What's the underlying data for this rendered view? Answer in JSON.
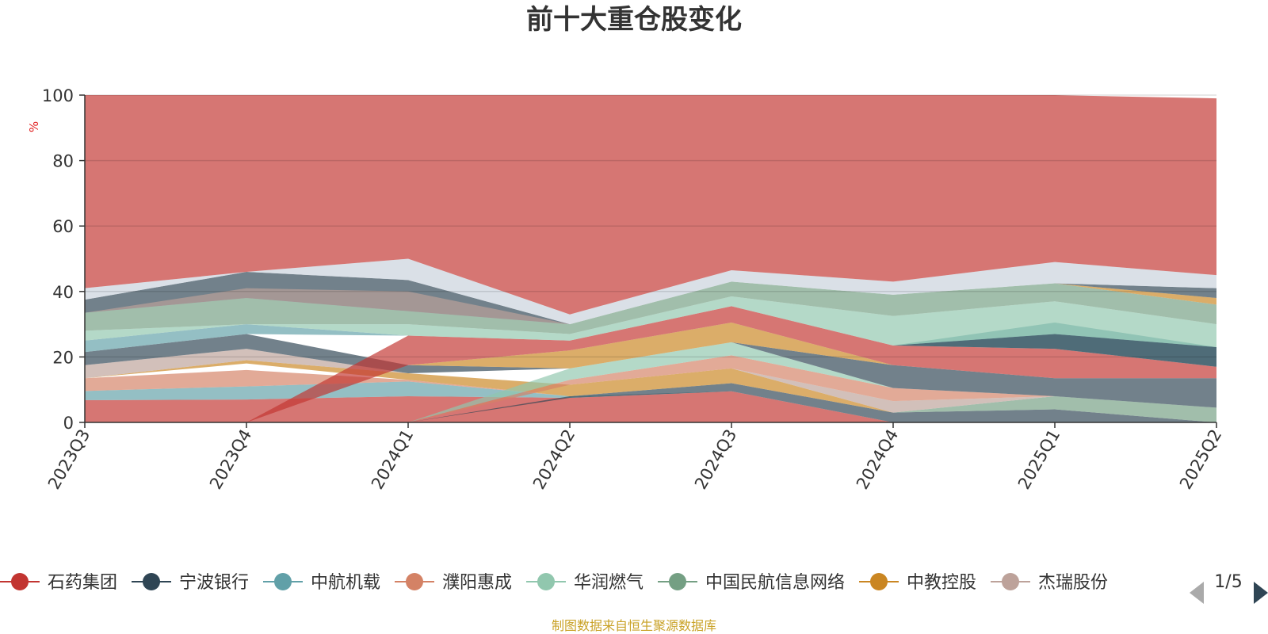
{
  "chart_data": {
    "type": "area",
    "title": "前十大重仓股变化",
    "ylabel": "%",
    "ylim": [
      0,
      100
    ],
    "yticks": [
      0,
      20,
      40,
      60,
      80,
      100
    ],
    "categories": [
      "2023Q3",
      "2023Q4",
      "2024Q1",
      "2024Q2",
      "2024Q3",
      "2024Q4",
      "2025Q1",
      "2025Q2"
    ],
    "bands": [
      {
        "color": "#c23531",
        "values": [
          [
            0,
            6.8
          ],
          [
            0,
            7
          ],
          [
            0,
            8
          ],
          [
            0,
            7.5
          ],
          [
            0,
            9.5
          ],
          [
            0,
            0
          ],
          [
            0,
            0
          ],
          [
            0,
            0
          ]
        ]
      },
      {
        "color": "#61a0a8",
        "values": [
          [
            6.8,
            9.6
          ],
          [
            7,
            11
          ],
          [
            8,
            12.5
          ],
          [
            7.5,
            8
          ],
          [
            9.5,
            9.5
          ],
          [
            0,
            0
          ],
          [
            0,
            0
          ],
          [
            0,
            0
          ]
        ]
      },
      {
        "color": "#d48265",
        "values": [
          [
            9.6,
            13.5
          ],
          [
            11,
            16
          ],
          [
            12.5,
            13
          ],
          [
            8,
            8
          ],
          [
            9.5,
            9.5
          ],
          [
            0,
            0
          ],
          [
            0,
            0
          ],
          [
            0,
            0
          ]
        ]
      },
      {
        "color": "#2f4554",
        "values": [
          [
            0,
            0
          ],
          [
            0,
            0
          ],
          [
            0,
            0
          ],
          [
            7.5,
            8
          ],
          [
            9.5,
            12
          ],
          [
            0,
            3
          ],
          [
            0,
            4
          ],
          [
            0,
            0
          ]
        ]
      },
      {
        "color": "#749f83",
        "values": [
          [
            0,
            0
          ],
          [
            0,
            0
          ],
          [
            0,
            0
          ],
          [
            0,
            0
          ],
          [
            0,
            0
          ],
          [
            3,
            3
          ],
          [
            4,
            8
          ],
          [
            0,
            4.5
          ]
        ]
      },
      {
        "color": "#ca8622",
        "values": [
          [
            13.5,
            13.5
          ],
          [
            18,
            19
          ],
          [
            13,
            15
          ],
          [
            8,
            11.5
          ],
          [
            12,
            16.5
          ],
          [
            3,
            3
          ],
          [
            8,
            8
          ],
          [
            4.5,
            4.5
          ]
        ]
      },
      {
        "color": "#bda29a",
        "values": [
          [
            13.5,
            17.5
          ],
          [
            19,
            22.5
          ],
          [
            15,
            15
          ],
          [
            11.5,
            11.5
          ],
          [
            16.5,
            16.5
          ],
          [
            3,
            6.5
          ],
          [
            8,
            8
          ],
          [
            4.5,
            4.5
          ]
        ]
      },
      {
        "color": "#d48265",
        "values": [
          [
            0,
            0
          ],
          [
            0,
            0
          ],
          [
            0,
            0
          ],
          [
            11.5,
            13
          ],
          [
            16.5,
            20.5
          ],
          [
            6.5,
            10.5
          ],
          [
            8,
            8
          ],
          [
            4.5,
            4.5
          ]
        ]
      },
      {
        "color": "#91c7ae",
        "values": [
          [
            0,
            0
          ],
          [
            0,
            0
          ],
          [
            0,
            0
          ],
          [
            13,
            16.5
          ],
          [
            20.5,
            24.5
          ],
          [
            10.5,
            10.5
          ],
          [
            8,
            8
          ],
          [
            4.5,
            4.5
          ]
        ]
      },
      {
        "color": "#2f4554",
        "values": [
          [
            17.5,
            21.5
          ],
          [
            22.5,
            27
          ],
          [
            15,
            17.5
          ],
          [
            16.5,
            16.5
          ],
          [
            24.5,
            24.5
          ],
          [
            10.5,
            17.5
          ],
          [
            8,
            13.5
          ],
          [
            4.5,
            13.5
          ]
        ]
      },
      {
        "color": "#ca8622",
        "values": [
          [
            0,
            0
          ],
          [
            0,
            0
          ],
          [
            17.5,
            17.5
          ],
          [
            16.5,
            22
          ],
          [
            24.5,
            30.5
          ],
          [
            17.5,
            17.5
          ],
          [
            13.5,
            13.5
          ],
          [
            13.5,
            13.5
          ]
        ]
      },
      {
        "color": "#c23531",
        "values": [
          [
            0,
            0
          ],
          [
            0,
            0
          ],
          [
            17.5,
            26.5
          ],
          [
            22,
            25
          ],
          [
            30.5,
            35.5
          ],
          [
            17.5,
            23.5
          ],
          [
            13.5,
            22.5
          ],
          [
            13.5,
            17
          ]
        ]
      },
      {
        "color": "#61a0a8",
        "values": [
          [
            21.5,
            25
          ],
          [
            27,
            30
          ],
          [
            26.5,
            26.5
          ],
          [
            25,
            25
          ],
          [
            35.5,
            35.5
          ],
          [
            23.5,
            23.5
          ],
          [
            22.5,
            30.5
          ],
          [
            17,
            23
          ]
        ]
      },
      {
        "color": "#2f4554",
        "values": [
          [
            0,
            0
          ],
          [
            0,
            0
          ],
          [
            0,
            0
          ],
          [
            0,
            0
          ],
          [
            0,
            0
          ],
          [
            23.5,
            23.5
          ],
          [
            22.5,
            27
          ],
          [
            17,
            23
          ]
        ]
      },
      {
        "color": "#91c7ae",
        "values": [
          [
            25,
            28
          ],
          [
            30,
            30
          ],
          [
            26.5,
            30
          ],
          [
            25,
            27
          ],
          [
            35.5,
            38.5
          ],
          [
            23.5,
            32.5
          ],
          [
            27,
            37
          ],
          [
            23,
            30
          ]
        ]
      },
      {
        "color": "#749f83",
        "values": [
          [
            28,
            33.5
          ],
          [
            30,
            38
          ],
          [
            30,
            34
          ],
          [
            27,
            30
          ],
          [
            38.5,
            43
          ],
          [
            32.5,
            39
          ],
          [
            37,
            42.5
          ],
          [
            30,
            36
          ]
        ]
      },
      {
        "color": "#ca8622",
        "values": [
          [
            0,
            0
          ],
          [
            0,
            0
          ],
          [
            0,
            0
          ],
          [
            0,
            0
          ],
          [
            0,
            0
          ],
          [
            0,
            0
          ],
          [
            42.5,
            42.5
          ],
          [
            36,
            38
          ]
        ]
      },
      {
        "color": "#2f4554",
        "values": [
          [
            33.5,
            37.5
          ],
          [
            38,
            46
          ],
          [
            34,
            43.5
          ],
          [
            30,
            30
          ],
          [
            43,
            43
          ],
          [
            39,
            39
          ],
          [
            42.5,
            42.5
          ],
          [
            38,
            41
          ]
        ]
      },
      {
        "color": "#bda29a",
        "values": [
          [
            33.5,
            33.5
          ],
          [
            38,
            41
          ],
          [
            34,
            40
          ],
          [
            30,
            30
          ],
          [
            43,
            43
          ],
          [
            39,
            39
          ],
          [
            42.5,
            42.5
          ],
          [
            38,
            38
          ]
        ]
      },
      {
        "color": "#c8d1dc",
        "values": [
          [
            37.5,
            41
          ],
          [
            46,
            46
          ],
          [
            43.5,
            50
          ],
          [
            30,
            33
          ],
          [
            43,
            46.5
          ],
          [
            39,
            43
          ],
          [
            42.5,
            49
          ],
          [
            41,
            45
          ]
        ]
      },
      {
        "color": "#c23531",
        "values": [
          [
            41,
            100
          ],
          [
            46,
            100
          ],
          [
            50,
            100
          ],
          [
            33,
            100
          ],
          [
            46.5,
            100
          ],
          [
            43,
            100
          ],
          [
            49,
            100
          ],
          [
            45,
            99
          ]
        ]
      }
    ],
    "legend_position": "bottom",
    "legend_page": "1/5",
    "legend": [
      {
        "name": "石药集团",
        "color": "#c23531"
      },
      {
        "name": "宁波银行",
        "color": "#2f4554"
      },
      {
        "name": "中航机载",
        "color": "#61a0a8"
      },
      {
        "name": "濮阳惠成",
        "color": "#d48265"
      },
      {
        "name": "华润燃气",
        "color": "#91c7ae"
      },
      {
        "name": "中国民航信息网络",
        "color": "#749f83"
      },
      {
        "name": "中教控股",
        "color": "#ca8622"
      },
      {
        "name": "杰瑞股份",
        "color": "#bda29a"
      }
    ]
  },
  "footer": "制图数据来自恒生聚源数据库"
}
